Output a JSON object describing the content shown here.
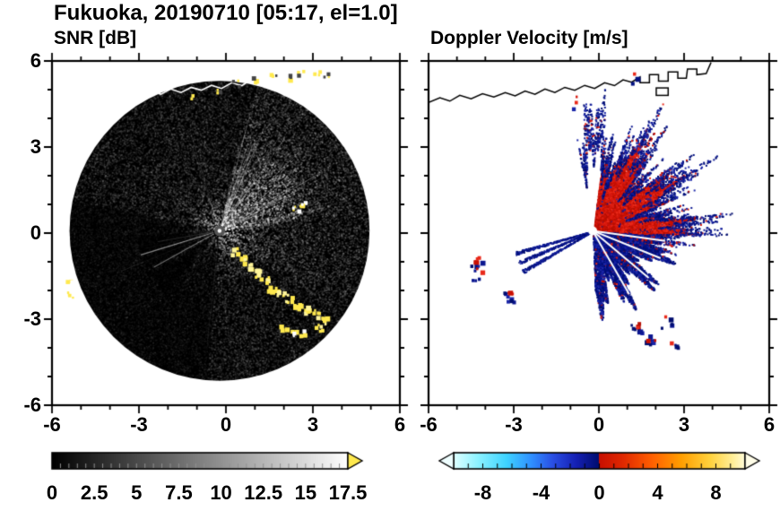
{
  "title": "Fukuoka, 20190710 [05:17, el=1.0]",
  "panels": {
    "snr": {
      "title": "SNR [dB]"
    },
    "velocity": {
      "title": "Doppler Velocity [m/s]"
    }
  },
  "axes": {
    "xlim": [
      -6,
      6
    ],
    "ylim": [
      -6,
      6
    ],
    "x_tick_values": [
      -6,
      -3,
      0,
      3,
      6
    ],
    "x_tick_labels": [
      "-6",
      "-3",
      "0",
      "3",
      "6"
    ],
    "y_tick_values": [
      6,
      3,
      0,
      -3,
      -6
    ],
    "y_tick_labels": [
      "6",
      "3",
      "0",
      "-3",
      "-6"
    ],
    "minor_tick_step": 1
  },
  "colorbars": {
    "snr": {
      "min": 0,
      "max": 17.5,
      "tick_values": [
        0,
        2.5,
        5,
        7.5,
        10,
        12.5,
        15,
        17.5
      ],
      "tick_labels": [
        "0",
        "2.5",
        "5",
        "7.5",
        "10",
        "12.5",
        "15",
        "17.5"
      ],
      "gradient": [
        "#000000",
        "#ffffff"
      ],
      "over_arrow_color": "#ffe94e"
    },
    "velocity": {
      "min": -10,
      "max": 10,
      "tick_values": [
        -8,
        -4,
        0,
        4,
        8
      ],
      "tick_labels": [
        "-8",
        "-4",
        "0",
        "4",
        "8"
      ],
      "stops": [
        [
          0,
          "#e0ffff"
        ],
        [
          0.08,
          "#8ff3ff"
        ],
        [
          0.18,
          "#3fd4ff"
        ],
        [
          0.27,
          "#2f8dff"
        ],
        [
          0.34,
          "#2a4fe4"
        ],
        [
          0.42,
          "#1520b4"
        ],
        [
          0.499,
          "#000d6e"
        ],
        [
          0.5,
          "#c80f00"
        ],
        [
          0.58,
          "#e02800"
        ],
        [
          0.68,
          "#ff5f00"
        ],
        [
          0.78,
          "#ff9e00"
        ],
        [
          0.88,
          "#ffd23d"
        ],
        [
          0.96,
          "#ffef9a"
        ],
        [
          1,
          "#fffbd8"
        ]
      ],
      "under_arrow_color": "#effeff",
      "over_arrow_color": "#fffde8"
    }
  },
  "coastline": {
    "line": [
      [
        -6,
        4.55
      ],
      [
        -5.6,
        4.72
      ],
      [
        -5.25,
        4.6
      ],
      [
        -4.9,
        4.8
      ],
      [
        -4.5,
        4.68
      ],
      [
        -4.1,
        4.86
      ],
      [
        -3.7,
        4.74
      ],
      [
        -3.3,
        4.9
      ],
      [
        -2.95,
        4.78
      ],
      [
        -2.6,
        4.95
      ],
      [
        -2.25,
        4.84
      ],
      [
        -1.9,
        5.02
      ],
      [
        -1.55,
        4.9
      ],
      [
        -1.2,
        5.08
      ],
      [
        -0.85,
        4.98
      ],
      [
        -0.5,
        5.15
      ],
      [
        -0.15,
        5.04
      ],
      [
        0.2,
        5.24
      ],
      [
        0.55,
        5.14
      ],
      [
        0.85,
        5.34
      ],
      [
        1.15,
        5.26
      ],
      [
        1.45,
        5.44
      ],
      [
        1.45,
        5.24
      ],
      [
        1.78,
        5.24
      ],
      [
        1.78,
        5.52
      ],
      [
        2.1,
        5.52
      ],
      [
        2.1,
        5.3
      ],
      [
        2.44,
        5.3
      ],
      [
        2.44,
        5.62
      ],
      [
        2.78,
        5.62
      ],
      [
        2.78,
        5.4
      ],
      [
        3.08,
        5.4
      ],
      [
        3.12,
        5.72
      ],
      [
        3.45,
        5.72
      ],
      [
        3.45,
        5.52
      ],
      [
        3.78,
        5.56
      ],
      [
        3.95,
        5.95
      ]
    ],
    "boxes": [
      [
        2.02,
        5.06,
        0.42,
        0.26
      ]
    ]
  },
  "chart_data": [
    {
      "type": "heatmap",
      "name": "snr",
      "title": "SNR [dB]",
      "units": "dB",
      "xlim": [
        -6,
        6
      ],
      "ylim": [
        -6,
        6
      ],
      "xticks": [
        -6,
        -3,
        0,
        3,
        6
      ],
      "yticks": [
        -6,
        -3,
        0,
        3,
        6
      ],
      "grid": false,
      "colorbar": {
        "min": 0,
        "max": 17.5,
        "ticks": [
          0,
          2.5,
          5,
          7.5,
          10,
          12.5,
          15,
          17.5
        ],
        "colormap": "black-to-white, yellow over-range arrow"
      },
      "description": "Radar SNR PPI scan: black disk of ~5.2 km radius around the radar, speckled grey noise, bright echo fan to the upper right, dark shadow wedges to the lower left, yellow strong-clutter arc curving to the lower right, white coastline across the top.",
      "features": {
        "radar_origin": [
          -0.22,
          0.08
        ],
        "scan_disk_radius": 5.2,
        "disk_color": "#000000",
        "bright_sector_deg": [
          8,
          78
        ],
        "mid_sector_deg": [
          -35,
          8
        ],
        "dark_sector_deg": [
          168,
          265
        ],
        "clutter_color": "#ffe94e",
        "clutter_arc": [
          [
            0.22,
            -0.62
          ],
          [
            0.5,
            -0.88
          ],
          [
            0.78,
            -1.1
          ],
          [
            1.05,
            -1.35
          ],
          [
            1.3,
            -1.6
          ],
          [
            1.55,
            -1.85
          ],
          [
            1.85,
            -2.05
          ],
          [
            2.15,
            -2.25
          ],
          [
            2.45,
            -2.45
          ],
          [
            2.75,
            -2.6
          ],
          [
            3.05,
            -2.78
          ],
          [
            3.3,
            -3.0
          ],
          [
            3.15,
            -3.25
          ]
        ],
        "clutter_spots": [
          [
            2.35,
            0.9
          ],
          [
            2.6,
            1.02
          ],
          [
            1.9,
            -3.3
          ],
          [
            2.25,
            -3.5
          ],
          [
            2.6,
            -3.45
          ],
          [
            -5.5,
            -1.55
          ],
          [
            -5.4,
            -2.0
          ],
          [
            -5.25,
            -2.35
          ]
        ],
        "coast_specks": [
          [
            -1.15,
            4.82
          ],
          [
            -0.35,
            5.0
          ],
          [
            0.3,
            5.26
          ],
          [
            0.95,
            5.4
          ],
          [
            1.6,
            5.5
          ],
          [
            2.15,
            5.45
          ],
          [
            2.55,
            5.65
          ],
          [
            3.1,
            5.66
          ],
          [
            3.45,
            5.52
          ]
        ],
        "coastline_color": "#ffffff"
      }
    },
    {
      "type": "heatmap",
      "name": "doppler_velocity",
      "title": "Doppler Velocity [m/s]",
      "units": "m/s",
      "xlim": [
        -6,
        6
      ],
      "ylim": [
        -6,
        6
      ],
      "xticks": [
        -6,
        -3,
        0,
        3,
        6
      ],
      "yticks": [
        -6,
        -3,
        0,
        3,
        6
      ],
      "grid": false,
      "colorbar": {
        "min": -10,
        "max": 10,
        "ticks": [
          -8,
          -4,
          0,
          4,
          8
        ],
        "colormap": "cyan-blue-navy | red-orange-yellow diverging at 0"
      },
      "description": "Doppler velocity PPI: dense red (positive, away) fan to the upper right of the radar, dense navy (negative, toward) region to the lower right, navy speckle fringe around the red fan, narrow navy beam wedges to the lower left, small isolated red/blue echo patches, black coastline across the top, white dot at the radar origin.",
      "features": {
        "radar_origin": [
          -0.22,
          0.08
        ],
        "positive_color": "#d9190f",
        "negative_color": "#0b1690",
        "red_fan_deg": [
          -14,
          82
        ],
        "red_fan_radius": 3.25,
        "fringe_deg": [
          -16,
          100
        ],
        "blue_lower_deg": [
          -88,
          -4
        ],
        "blue_lower_radius": 2.7,
        "wedge_rays_deg": [
          196,
          203,
          210
        ],
        "wedge_ray_radius": 2.85,
        "white_gap_rays_deg": [
          -8,
          -22,
          -40,
          -60,
          84
        ],
        "patches": [
          {
            "xy": [
              -4.35,
              -1.05
            ],
            "red": 4,
            "blue": 5
          },
          {
            "xy": [
              -4.3,
              -1.45
            ],
            "red": 2,
            "blue": 4
          },
          {
            "xy": [
              -3.2,
              -2.2
            ],
            "red": 3,
            "blue": 7
          },
          {
            "xy": [
              1.3,
              -3.3
            ],
            "red": 3,
            "blue": 8
          },
          {
            "xy": [
              1.8,
              -3.7
            ],
            "red": 2,
            "blue": 6
          },
          {
            "xy": [
              2.35,
              -3.1
            ],
            "red": 1,
            "blue": 4
          },
          {
            "xy": [
              2.6,
              -3.95
            ],
            "red": 1,
            "blue": 3
          },
          {
            "xy": [
              -0.85,
              4.55
            ],
            "red": 2,
            "blue": 1
          },
          {
            "xy": [
              1.15,
              5.45
            ],
            "red": 1,
            "blue": 2
          }
        ],
        "coastline_color": "#000000"
      }
    }
  ]
}
